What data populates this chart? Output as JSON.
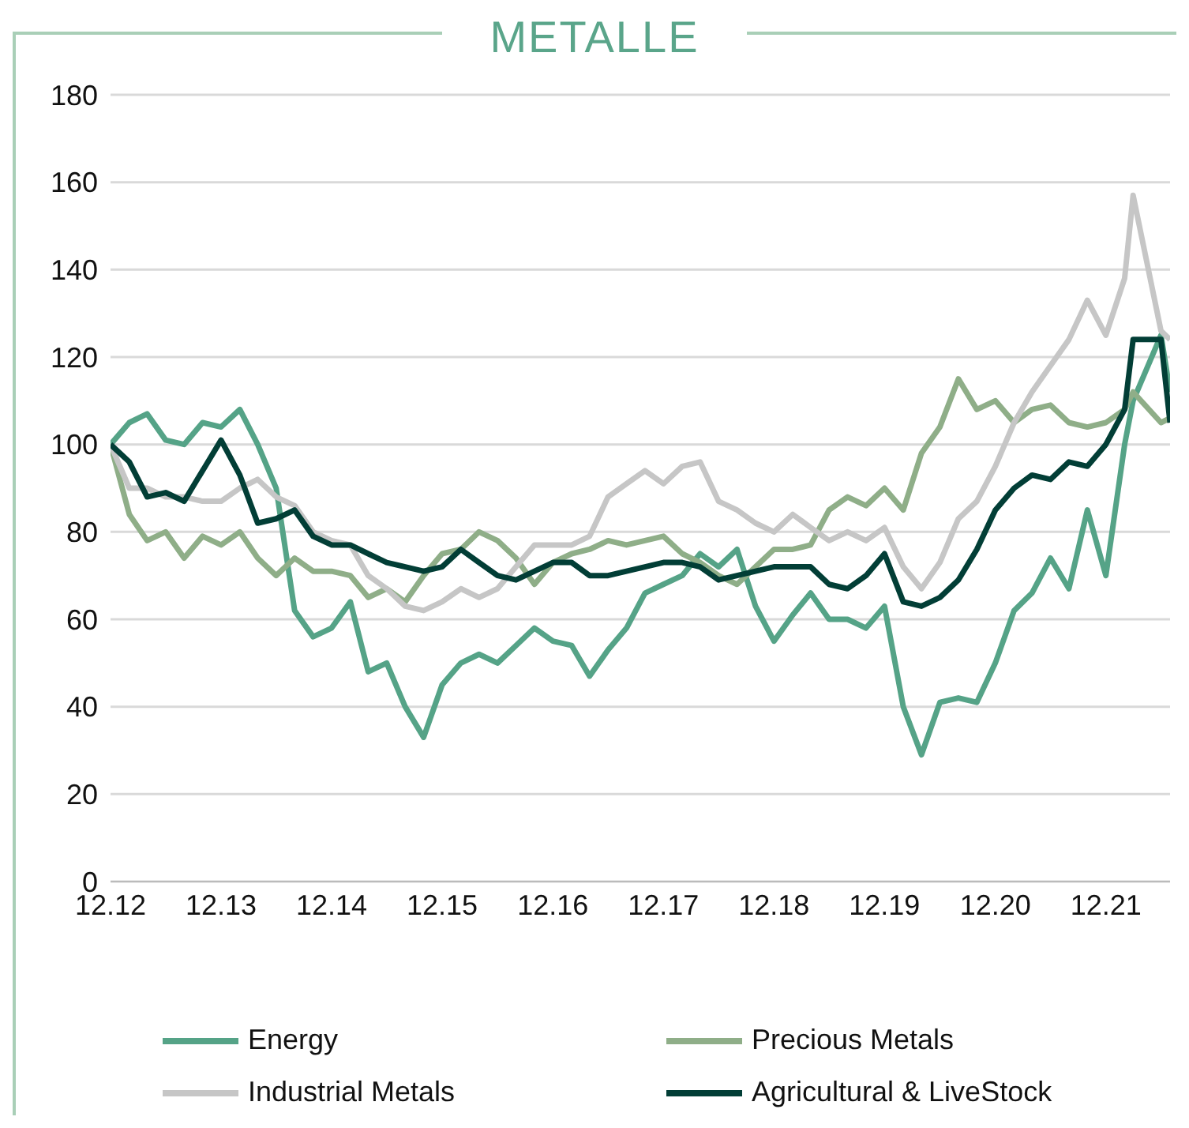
{
  "chart_data": {
    "type": "line",
    "title": "METALLE",
    "x": [
      "2012-12",
      "2013-02",
      "2013-04",
      "2013-06",
      "2013-08",
      "2013-10",
      "2013-12",
      "2014-02",
      "2014-04",
      "2014-06",
      "2014-08",
      "2014-10",
      "2014-12",
      "2015-02",
      "2015-04",
      "2015-06",
      "2015-08",
      "2015-10",
      "2015-12",
      "2016-02",
      "2016-04",
      "2016-06",
      "2016-08",
      "2016-10",
      "2016-12",
      "2017-02",
      "2017-04",
      "2017-06",
      "2017-08",
      "2017-10",
      "2017-12",
      "2018-02",
      "2018-04",
      "2018-06",
      "2018-08",
      "2018-10",
      "2018-12",
      "2019-02",
      "2019-04",
      "2019-06",
      "2019-08",
      "2019-10",
      "2019-12",
      "2020-02",
      "2020-04",
      "2020-06",
      "2020-08",
      "2020-10",
      "2020-12",
      "2021-02",
      "2021-04",
      "2021-06",
      "2021-08",
      "2021-10",
      "2021-12",
      "2022-02",
      "2022-03",
      "2022-06",
      "2022-07"
    ],
    "series": [
      {
        "name": "Energy",
        "color": "#55a387",
        "values": [
          100,
          105,
          107,
          101,
          100,
          105,
          104,
          108,
          100,
          90,
          62,
          56,
          58,
          64,
          48,
          50,
          40,
          33,
          45,
          50,
          52,
          50,
          54,
          58,
          55,
          54,
          47,
          53,
          58,
          66,
          68,
          70,
          75,
          72,
          76,
          63,
          55,
          61,
          66,
          60,
          60,
          58,
          63,
          40,
          29,
          41,
          42,
          41,
          50,
          62,
          66,
          74,
          67,
          85,
          70,
          100,
          110,
          125,
          112
        ]
      },
      {
        "name": "Precious Metals",
        "color": "#8fae88",
        "values": [
          100,
          84,
          78,
          80,
          74,
          79,
          77,
          80,
          74,
          70,
          74,
          71,
          71,
          70,
          65,
          67,
          64,
          70,
          75,
          76,
          80,
          78,
          74,
          68,
          73,
          75,
          76,
          78,
          77,
          78,
          79,
          75,
          73,
          70,
          68,
          72,
          76,
          76,
          77,
          85,
          88,
          86,
          90,
          85,
          98,
          104,
          115,
          108,
          110,
          105,
          108,
          109,
          105,
          104,
          105,
          108,
          112,
          105,
          106
        ]
      },
      {
        "name": "Industrial Metals",
        "color": "#c6c6c6",
        "values": [
          100,
          90,
          90,
          88,
          88,
          87,
          87,
          90,
          92,
          88,
          86,
          80,
          78,
          77,
          70,
          67,
          63,
          62,
          64,
          67,
          65,
          67,
          72,
          77,
          77,
          77,
          79,
          88,
          91,
          94,
          91,
          95,
          96,
          87,
          85,
          82,
          80,
          84,
          81,
          78,
          80,
          78,
          81,
          72,
          67,
          73,
          83,
          87,
          95,
          105,
          112,
          118,
          124,
          133,
          125,
          138,
          157,
          126,
          124
        ]
      },
      {
        "name": "Agricultural & LiveStock",
        "color": "#023e36",
        "values": [
          100,
          96,
          88,
          89,
          87,
          94,
          101,
          93,
          82,
          83,
          85,
          79,
          77,
          77,
          75,
          73,
          72,
          71,
          72,
          76,
          73,
          70,
          69,
          71,
          73,
          73,
          70,
          70,
          71,
          72,
          73,
          73,
          72,
          69,
          70,
          71,
          72,
          72,
          72,
          68,
          67,
          70,
          75,
          64,
          63,
          65,
          69,
          76,
          85,
          90,
          93,
          92,
          96,
          95,
          100,
          108,
          124,
          124,
          105
        ]
      }
    ],
    "xlim": [
      "2012-12",
      "2022-07"
    ],
    "xticks": [
      {
        "value": "2012-12",
        "label": "12.12"
      },
      {
        "value": "2013-12",
        "label": "12.13"
      },
      {
        "value": "2014-12",
        "label": "12.14"
      },
      {
        "value": "2015-12",
        "label": "12.15"
      },
      {
        "value": "2016-12",
        "label": "12.16"
      },
      {
        "value": "2017-12",
        "label": "12.17"
      },
      {
        "value": "2018-12",
        "label": "12.18"
      },
      {
        "value": "2019-12",
        "label": "12.19"
      },
      {
        "value": "2020-12",
        "label": "12.20"
      },
      {
        "value": "2021-12",
        "label": "12.21"
      }
    ],
    "ylim": [
      0,
      180
    ],
    "yticks": [
      0,
      20,
      40,
      60,
      80,
      100,
      120,
      140,
      160,
      180
    ],
    "grid": "y",
    "legend": "bottom",
    "marker": "none",
    "line_style": "solid"
  }
}
